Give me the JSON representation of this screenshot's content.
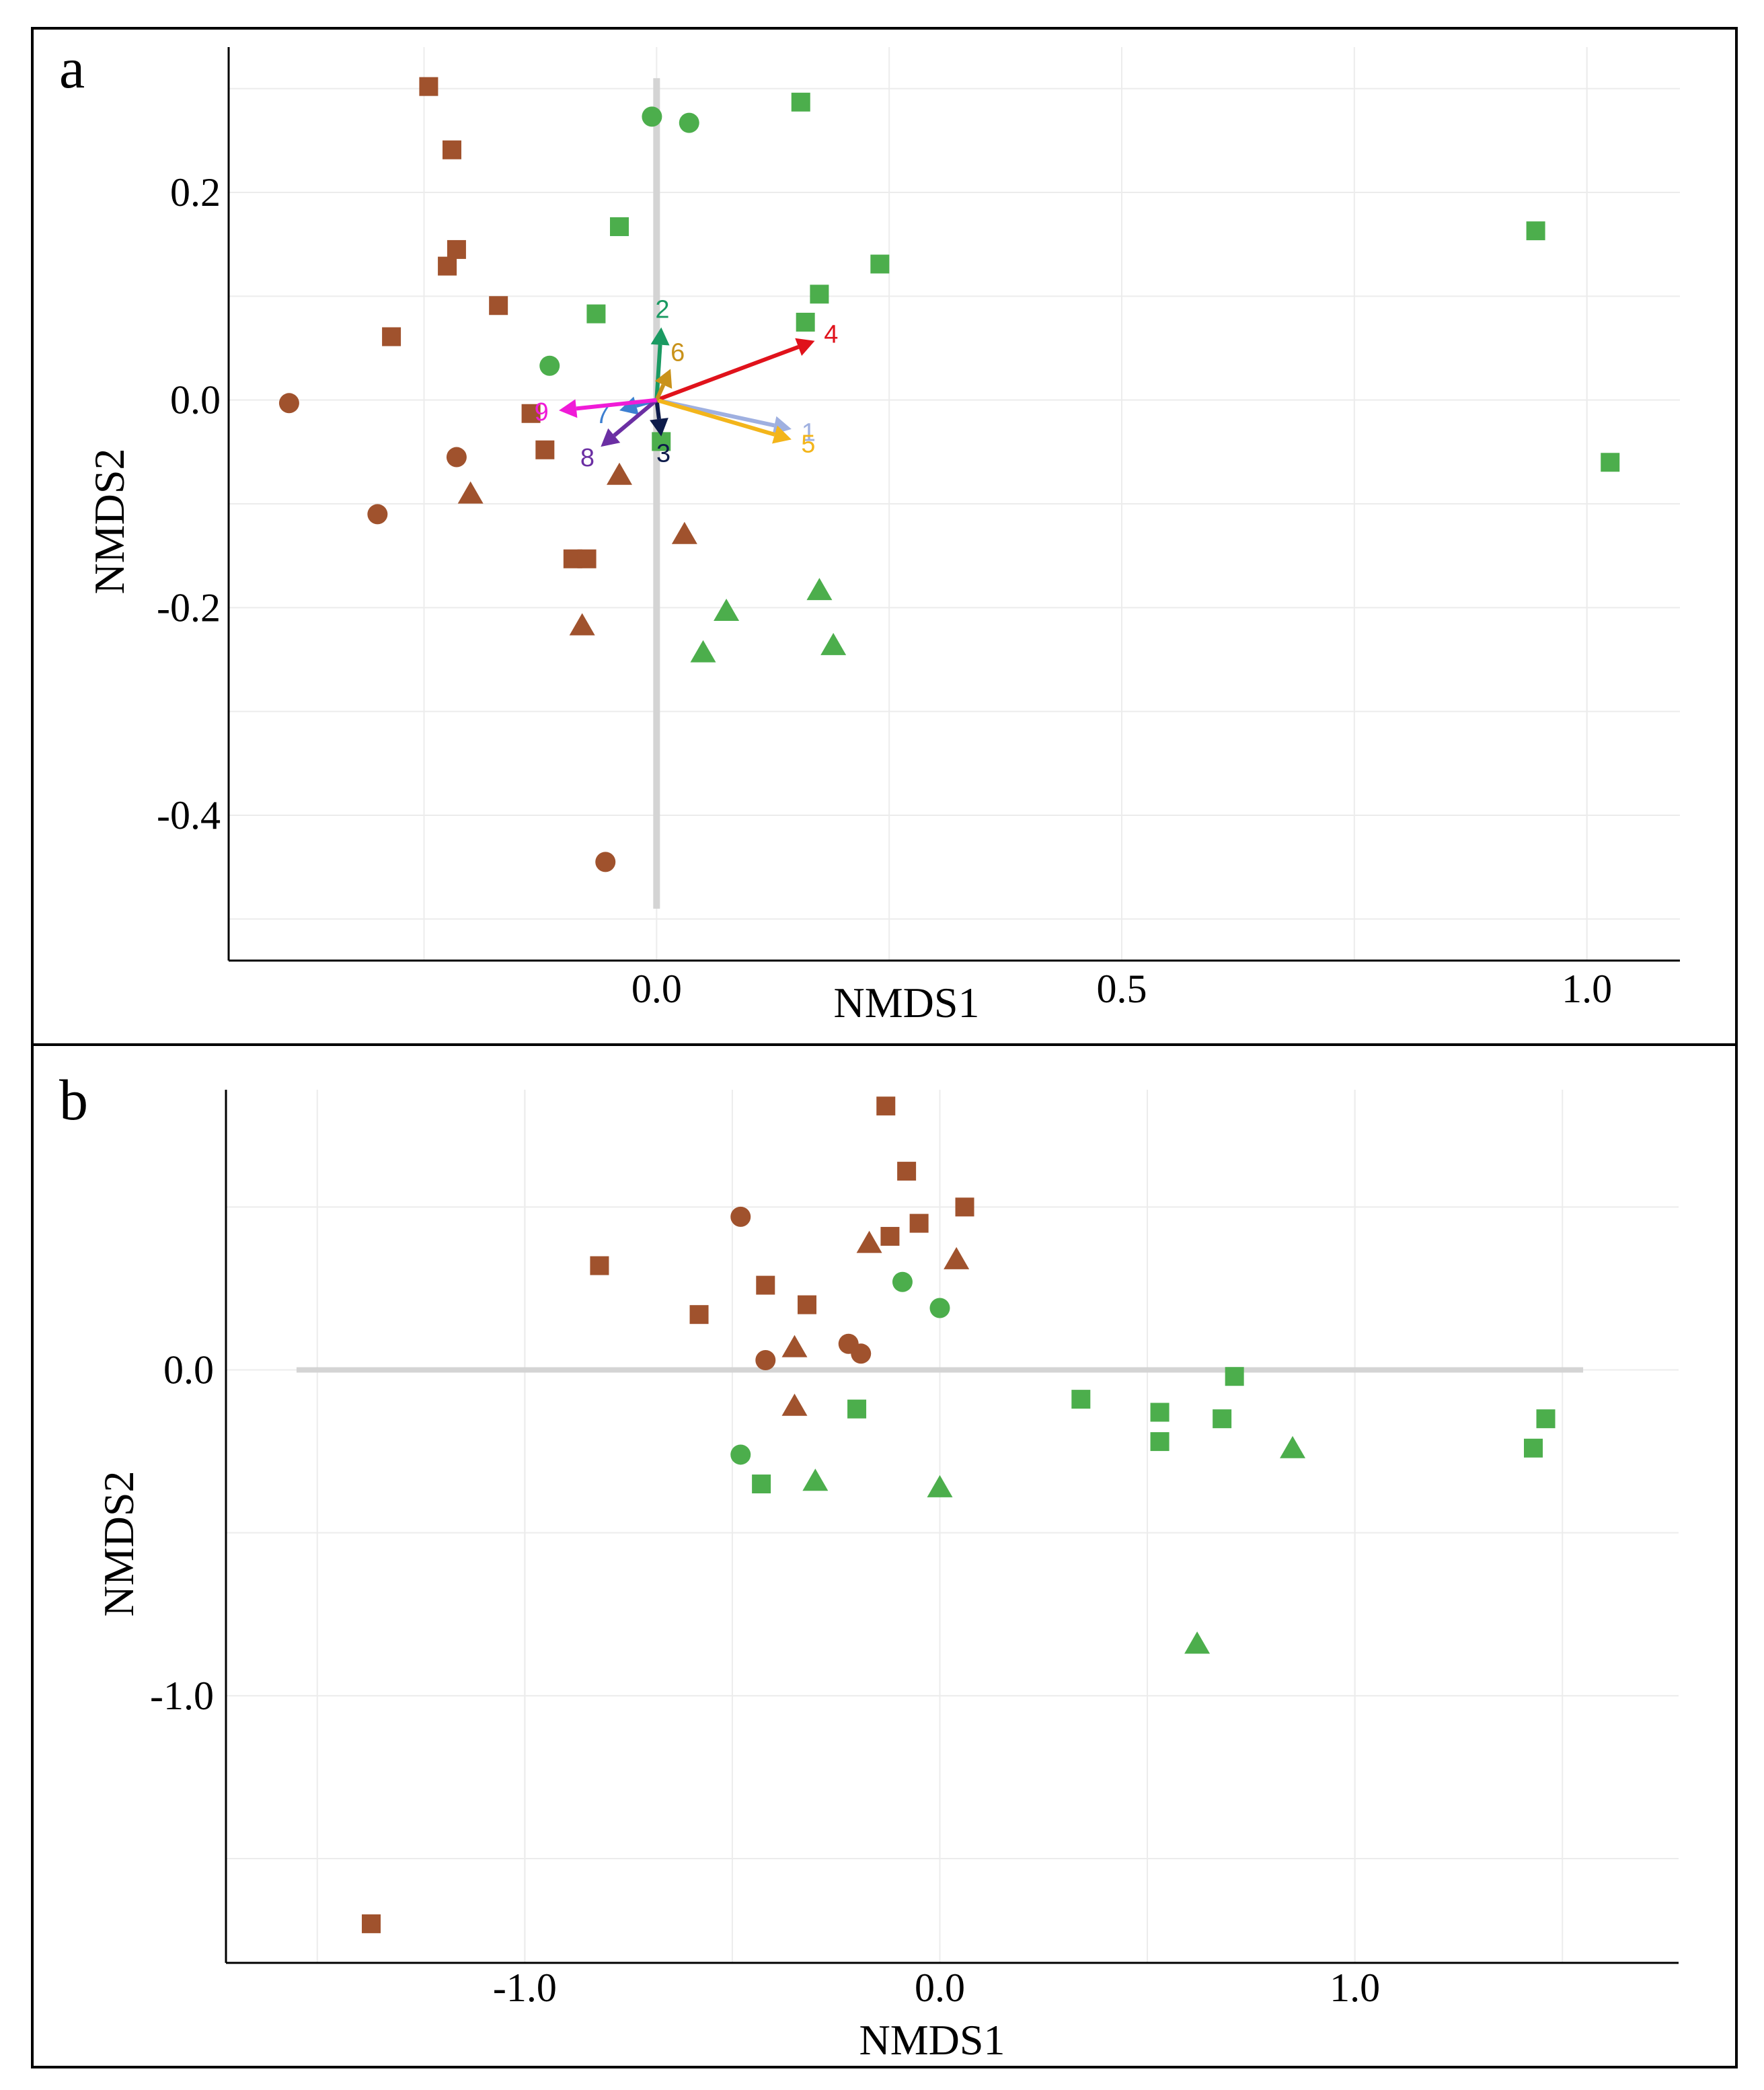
{
  "chart_data": [
    {
      "panel_label": "a",
      "type": "scatter",
      "title": "",
      "xlabel": "NMDS1",
      "ylabel": "NMDS2",
      "xlim": [
        -0.46,
        1.1
      ],
      "ylim": [
        -0.54,
        0.34
      ],
      "xticks": [
        0.0,
        0.5,
        1.0
      ],
      "xtick_labels": [
        "0.0",
        "0.5",
        "1.0"
      ],
      "yticks": [
        -0.4,
        -0.2,
        0.0,
        0.2
      ],
      "ytick_labels": [
        "-0.4",
        "-0.2",
        "0.0",
        "0.2"
      ],
      "grid": true,
      "zero_line": "vertical",
      "colors": {
        "brown": "#a0522d",
        "green": "#4cae4c"
      },
      "series": [
        {
          "name": "brown-square",
          "color": "#a0522d",
          "shape": "square",
          "points": [
            [
              -0.245,
              0.302
            ],
            [
              -0.22,
              0.241
            ],
            [
              -0.215,
              0.145
            ],
            [
              -0.225,
              0.129
            ],
            [
              -0.17,
              0.091
            ],
            [
              -0.285,
              0.061
            ],
            [
              -0.135,
              -0.013
            ],
            [
              -0.12,
              -0.048
            ],
            [
              -0.09,
              -0.153
            ],
            [
              -0.075,
              -0.153
            ]
          ]
        },
        {
          "name": "brown-circle",
          "color": "#a0522d",
          "shape": "circle",
          "points": [
            [
              -0.395,
              -0.003
            ],
            [
              -0.215,
              -0.055
            ],
            [
              -0.3,
              -0.11
            ],
            [
              -0.055,
              -0.445
            ]
          ]
        },
        {
          "name": "brown-triangle",
          "color": "#a0522d",
          "shape": "triangle",
          "points": [
            [
              -0.2,
              -0.09
            ],
            [
              -0.04,
              -0.072
            ],
            [
              0.03,
              -0.129
            ],
            [
              -0.08,
              -0.217
            ]
          ]
        },
        {
          "name": "green-square",
          "color": "#4cae4c",
          "shape": "square",
          "points": [
            [
              0.155,
              0.287
            ],
            [
              -0.04,
              0.167
            ],
            [
              0.24,
              0.131
            ],
            [
              0.175,
              0.102
            ],
            [
              0.16,
              0.075
            ],
            [
              -0.065,
              0.083
            ],
            [
              0.005,
              -0.04
            ],
            [
              0.945,
              0.163
            ],
            [
              1.025,
              -0.06
            ]
          ]
        },
        {
          "name": "green-circle",
          "color": "#4cae4c",
          "shape": "circle",
          "points": [
            [
              -0.005,
              0.273
            ],
            [
              0.035,
              0.267
            ],
            [
              -0.115,
              0.033
            ]
          ]
        },
        {
          "name": "green-triangle",
          "color": "#4cae4c",
          "shape": "triangle",
          "points": [
            [
              0.075,
              -0.203
            ],
            [
              0.175,
              -0.183
            ],
            [
              0.19,
              -0.236
            ],
            [
              0.05,
              -0.243
            ]
          ]
        }
      ],
      "vectors": [
        {
          "label": "1",
          "color": "#9fb0e0",
          "x": 0.145,
          "y": -0.028
        },
        {
          "label": "2",
          "color": "#1a9a62",
          "x": 0.005,
          "y": 0.07
        },
        {
          "label": "3",
          "color": "#0d1b4a",
          "x": 0.005,
          "y": -0.035
        },
        {
          "label": "4",
          "color": "#e0121b",
          "x": 0.17,
          "y": 0.057
        },
        {
          "label": "5",
          "color": "#f3b51b",
          "x": 0.145,
          "y": -0.038
        },
        {
          "label": "6",
          "color": "#c9921a",
          "x": 0.015,
          "y": 0.03
        },
        {
          "label": "7",
          "color": "#3d7fd1",
          "x": -0.04,
          "y": -0.01
        },
        {
          "label": "8",
          "color": "#6b2fa3",
          "x": -0.06,
          "y": -0.045
        },
        {
          "label": "9",
          "color": "#f01bd7",
          "x": -0.105,
          "y": -0.01
        }
      ]
    },
    {
      "panel_label": "b",
      "type": "scatter",
      "title": "",
      "xlabel": "NMDS1",
      "ylabel": "NMDS2",
      "xlim": [
        -1.72,
        1.78
      ],
      "ylim": [
        -1.82,
        0.86
      ],
      "xticks": [
        -1.0,
        0.0,
        1.0
      ],
      "xtick_labels": [
        "-1.0",
        "0.0",
        "1.0"
      ],
      "yticks": [
        -1.0,
        0.0
      ],
      "ytick_labels": [
        "-1.0",
        "0.0"
      ],
      "grid": true,
      "zero_line": "horizontal",
      "colors": {
        "brown": "#a0522d",
        "green": "#4cae4c"
      },
      "series": [
        {
          "name": "brown-square",
          "color": "#a0522d",
          "shape": "square",
          "points": [
            [
              -0.13,
              0.81
            ],
            [
              -0.08,
              0.61
            ],
            [
              0.06,
              0.5
            ],
            [
              -0.05,
              0.45
            ],
            [
              -0.12,
              0.41
            ],
            [
              -0.82,
              0.32
            ],
            [
              -0.42,
              0.26
            ],
            [
              -0.32,
              0.2
            ],
            [
              -0.58,
              0.17
            ],
            [
              -1.37,
              -1.7
            ]
          ]
        },
        {
          "name": "brown-circle",
          "color": "#a0522d",
          "shape": "circle",
          "points": [
            [
              -0.48,
              0.47
            ],
            [
              -0.22,
              0.08
            ],
            [
              -0.19,
              0.05
            ],
            [
              -0.42,
              0.03
            ]
          ]
        },
        {
          "name": "brown-triangle",
          "color": "#a0522d",
          "shape": "triangle",
          "points": [
            [
              -0.17,
              0.39
            ],
            [
              0.04,
              0.34
            ],
            [
              -0.35,
              0.07
            ],
            [
              -0.35,
              -0.11
            ]
          ]
        },
        {
          "name": "green-square",
          "color": "#4cae4c",
          "shape": "square",
          "points": [
            [
              -0.2,
              -0.12
            ],
            [
              0.34,
              -0.09
            ],
            [
              0.53,
              -0.13
            ],
            [
              0.53,
              -0.22
            ],
            [
              0.68,
              -0.15
            ],
            [
              0.71,
              -0.02
            ],
            [
              -0.43,
              -0.35
            ],
            [
              1.46,
              -0.15
            ],
            [
              1.43,
              -0.24
            ]
          ]
        },
        {
          "name": "green-circle",
          "color": "#4cae4c",
          "shape": "circle",
          "points": [
            [
              -0.09,
              0.27
            ],
            [
              0.0,
              0.19
            ],
            [
              -0.48,
              -0.26
            ]
          ]
        },
        {
          "name": "green-triangle",
          "color": "#4cae4c",
          "shape": "triangle",
          "points": [
            [
              -0.3,
              -0.34
            ],
            [
              0.0,
              -0.36
            ],
            [
              0.85,
              -0.24
            ],
            [
              0.62,
              -0.84
            ]
          ]
        }
      ],
      "vectors": []
    }
  ]
}
